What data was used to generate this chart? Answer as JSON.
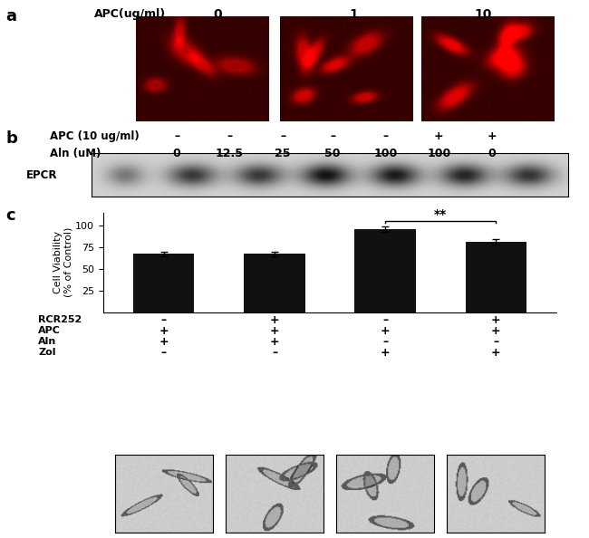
{
  "panel_a_label": "a",
  "panel_b_label": "b",
  "panel_c_label": "c",
  "panel_a_header": "APC(ug/ml)",
  "panel_a_concentrations": [
    "0",
    "1",
    "10"
  ],
  "panel_b_apc_label": "APC (10 ug/ml)",
  "panel_b_aln_label": "Aln (uM)",
  "panel_b_apc_vals": [
    "–",
    "–",
    "–",
    "–",
    "–",
    "+",
    "+"
  ],
  "panel_b_aln_vals": [
    "0",
    "12.5",
    "25",
    "50",
    "100",
    "100",
    "0"
  ],
  "panel_b_protein": "EPCR",
  "bar_values": [
    67,
    67,
    96,
    81
  ],
  "bar_errors": [
    3,
    3,
    3,
    3
  ],
  "bar_color": "#111111",
  "bar_width": 0.55,
  "ylabel": "Cell Viability\n(% of Control)",
  "yticks": [
    25,
    50,
    75,
    100
  ],
  "row_labels": [
    "RCR252",
    "APC",
    "Aln",
    "Zol"
  ],
  "row_values": [
    [
      "–",
      "+",
      "–",
      "+"
    ],
    [
      "+",
      "+",
      "+",
      "+"
    ],
    [
      "+",
      "+",
      "–",
      "–"
    ],
    [
      "–",
      "–",
      "+",
      "+"
    ]
  ],
  "sig_text": "**",
  "background_color": "#ffffff"
}
